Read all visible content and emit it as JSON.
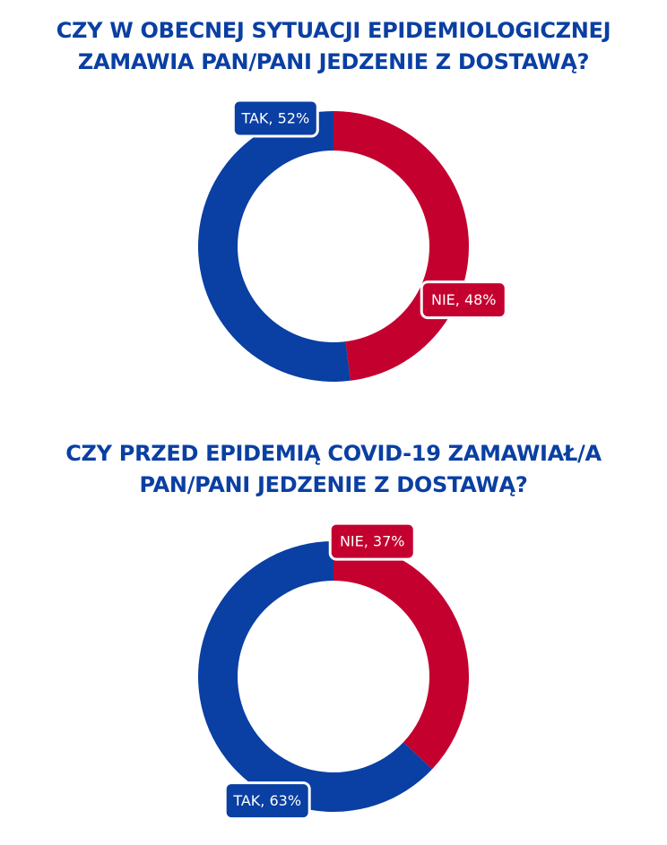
{
  "colors": {
    "blue": "#0a3fa3",
    "red": "#c4002f",
    "background": "#ffffff"
  },
  "chart_data": [
    {
      "type": "pie",
      "style": "donut",
      "title_lines": [
        "CZY W OBECNEJ SYTUACJI EPIDEMIOLOGICZNEJ",
        "ZAMAWIA PAN/PANI JEDZENIE Z DOSTAWĄ?"
      ],
      "slices": [
        {
          "label": "NIE, 48%",
          "category": "NIE",
          "value": 48,
          "color": "#c4002f"
        },
        {
          "label": "TAK, 52%",
          "category": "TAK",
          "value": 52,
          "color": "#0a3fa3"
        }
      ]
    },
    {
      "type": "pie",
      "style": "donut",
      "title_lines": [
        "CZY PRZED EPIDEMIĄ COVID-19 ZAMAWIAŁ/A",
        "PAN/PANI JEDZENIE Z DOSTAWĄ?"
      ],
      "slices": [
        {
          "label": "NIE, 37%",
          "category": "NIE",
          "value": 37,
          "color": "#c4002f"
        },
        {
          "label": "TAK, 63%",
          "category": "TAK",
          "value": 63,
          "color": "#0a3fa3"
        }
      ]
    }
  ]
}
